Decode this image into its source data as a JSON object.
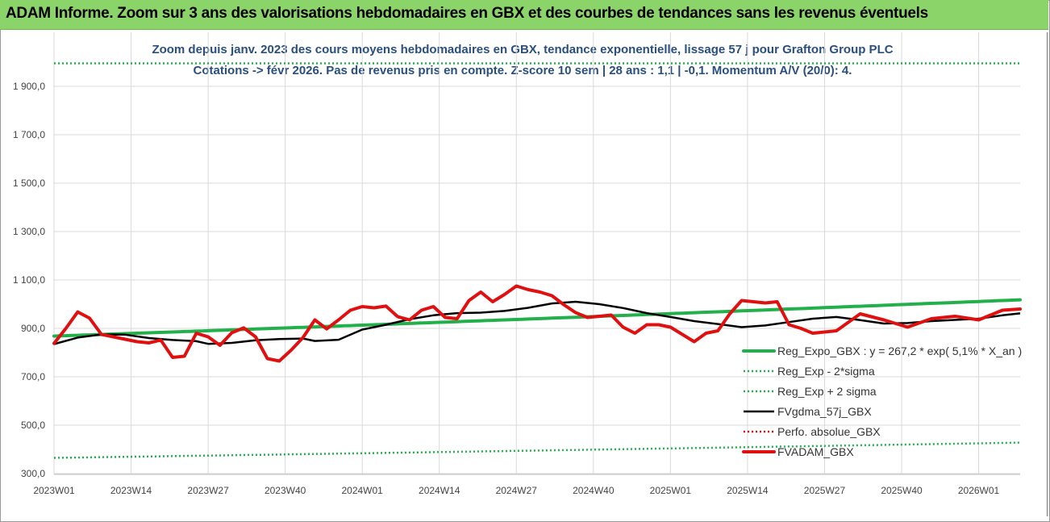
{
  "banner": {
    "title": "ADAM Informe. Zoom sur 3 ans des valorisations hebdomadaires en GBX et des courbes de tendances sans les revenus éventuels"
  },
  "chart_data": {
    "type": "line",
    "title": "Zoom depuis janv. 2023 des cours moyens hebdomadaires en GBX, tendance exponentielle, lissage 57 j pour Grafton Group PLC",
    "subtitle": "Cotations -> févr 2026. Pas de revenus pris en compte. Z-score 10 sem | 28 ans : 1,1 | -0,1. Momentum A/V (20/0): 4.",
    "xlabel": "",
    "ylabel": "",
    "ylim": [
      300,
      2000
    ],
    "yticks": [
      "300,0",
      "500,0",
      "700,0",
      "900,0",
      "1 100,0",
      "1 300,0",
      "1 500,0",
      "1 700,0",
      "1 900,0"
    ],
    "ytick_values": [
      300,
      500,
      700,
      900,
      1100,
      1300,
      1500,
      1700,
      1900
    ],
    "xticks": [
      "2023W01",
      "2023W14",
      "2023W27",
      "2023W40",
      "2024W01",
      "2024W14",
      "2024W27",
      "2024W40",
      "2025W01",
      "2025W14",
      "2025W27",
      "2025W40",
      "2026W01"
    ],
    "xtick_weeks": [
      0,
      13,
      26,
      39,
      52,
      65,
      78,
      91,
      104,
      117,
      130,
      143,
      156
    ],
    "x_units": "weeks since 2023W01",
    "grid": true,
    "legend_position": "bottom-right",
    "series": [
      {
        "name": "Reg_Expo_GBX : y = 267,2 * exp( 5,1% *   X_an )",
        "color": "#22b04b",
        "style": "solid-thick",
        "x": [
          0,
          163
        ],
        "values": [
          868,
          1018
        ],
        "interpolation": "exponential"
      },
      {
        "name": "Reg_Exp - 2*sigma",
        "color": "#22b04b",
        "style": "dotted",
        "x": [
          0,
          163
        ],
        "values": [
          365,
          428
        ],
        "interpolation": "exponential"
      },
      {
        "name": "Reg_Exp + 2 sigma",
        "color": "#22b04b",
        "style": "dotted",
        "x": [
          0,
          163
        ],
        "values": [
          1995,
          1995
        ],
        "interpolation": "linear"
      },
      {
        "name": "FVgdma_57j_GBX",
        "color": "#000000",
        "style": "solid",
        "x": [
          0,
          4,
          8,
          12,
          16,
          20,
          24,
          26,
          30,
          34,
          38,
          42,
          44,
          48,
          52,
          56,
          60,
          64,
          68,
          72,
          76,
          80,
          84,
          88,
          92,
          96,
          100,
          104,
          108,
          112,
          116,
          120,
          124,
          128,
          132,
          136,
          140,
          144,
          148,
          152,
          156,
          160,
          163
        ],
        "values": [
          835,
          862,
          875,
          874,
          860,
          852,
          847,
          836,
          840,
          851,
          856,
          858,
          848,
          853,
          895,
          915,
          938,
          954,
          963,
          965,
          972,
          985,
          1003,
          1010,
          1000,
          984,
          963,
          947,
          930,
          918,
          905,
          912,
          926,
          940,
          947,
          934,
          920,
          922,
          930,
          935,
          940,
          954,
          962
        ]
      },
      {
        "name": "Perfo. absolue_GBX",
        "color": "#e01010",
        "style": "dotted",
        "x": [],
        "values": []
      },
      {
        "name": "FVADAM_GBX",
        "color": "#e01010",
        "style": "solid-thick",
        "x": [
          0,
          2,
          4,
          6,
          8,
          10,
          12,
          14,
          16,
          18,
          20,
          22,
          24,
          26,
          28,
          30,
          32,
          34,
          36,
          38,
          40,
          42,
          44,
          46,
          48,
          50,
          52,
          54,
          56,
          58,
          60,
          62,
          64,
          66,
          68,
          70,
          72,
          74,
          76,
          78,
          80,
          82,
          84,
          86,
          88,
          90,
          92,
          94,
          96,
          98,
          100,
          102,
          104,
          106,
          108,
          110,
          112,
          114,
          116,
          118,
          120,
          122,
          124,
          126,
          128,
          130,
          132,
          134,
          136,
          140,
          144,
          148,
          152,
          156,
          160,
          163
        ],
        "values": [
          838,
          900,
          968,
          942,
          875,
          865,
          855,
          845,
          840,
          852,
          780,
          785,
          880,
          865,
          830,
          882,
          902,
          865,
          775,
          765,
          810,
          862,
          935,
          898,
          935,
          975,
          990,
          985,
          992,
          948,
          935,
          975,
          990,
          945,
          940,
          1015,
          1050,
          1010,
          1040,
          1075,
          1060,
          1050,
          1035,
          998,
          965,
          945,
          950,
          955,
          905,
          880,
          915,
          915,
          905,
          875,
          845,
          880,
          890,
          960,
          1015,
          1010,
          1005,
          1010,
          915,
          900,
          880,
          885,
          890,
          925,
          960,
          935,
          905,
          940,
          950,
          935,
          975,
          980
        ]
      }
    ]
  }
}
